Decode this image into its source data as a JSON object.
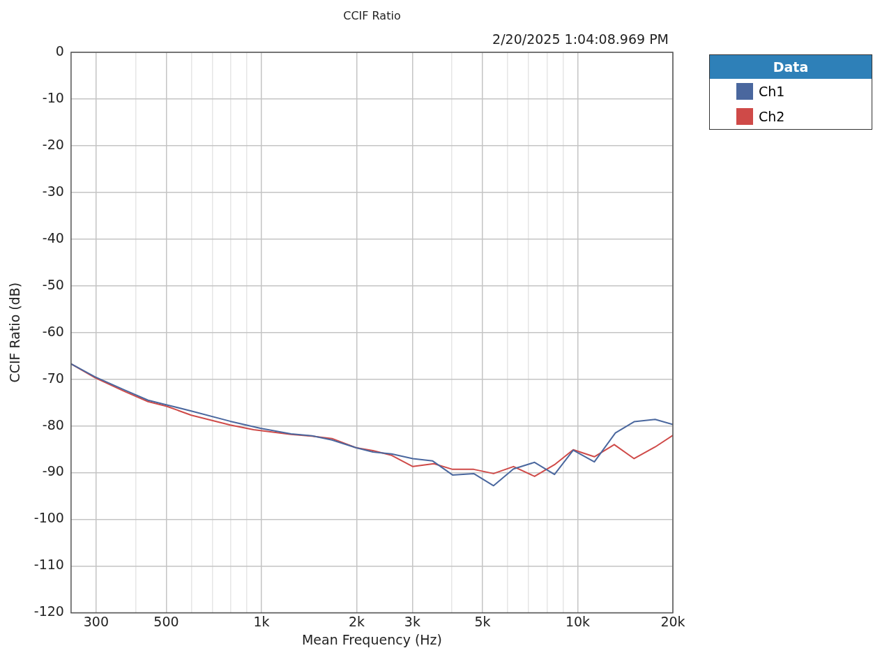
{
  "chart_data": {
    "type": "line",
    "title": "CCIF Ratio",
    "subtitle": "2/20/2025 1:04:08.969 PM",
    "xlabel": "Mean Frequency (Hz)",
    "ylabel": "CCIF Ratio (dB)",
    "legend_title": "Data",
    "legend": "right",
    "grid": true,
    "log": "x",
    "marker": "none",
    "line_style": "solid",
    "xlim": [
      250,
      20000
    ],
    "ylim": [
      -120,
      0
    ],
    "xticks": [
      300,
      {
        "value": 400,
        "label": null
      },
      500,
      {
        "value": 600,
        "label": null
      },
      {
        "value": 700,
        "label": null
      },
      {
        "value": 800,
        "label": null
      },
      {
        "value": 900,
        "label": null
      },
      {
        "value": 1000,
        "label": "1k"
      },
      {
        "value": 2000,
        "label": "2k"
      },
      {
        "value": 3000,
        "label": "3k"
      },
      {
        "value": 4000,
        "label": null
      },
      {
        "value": 5000,
        "label": "5k"
      },
      {
        "value": 6000,
        "label": null
      },
      {
        "value": 7000,
        "label": null
      },
      {
        "value": 8000,
        "label": null
      },
      {
        "value": 9000,
        "label": null
      },
      {
        "value": 10000,
        "label": "10k"
      },
      {
        "value": 20000,
        "label": "20k"
      }
    ],
    "yticks": [
      0,
      -10,
      -20,
      -30,
      -40,
      -50,
      -60,
      -70,
      -80,
      -90,
      -100,
      -110,
      -120
    ],
    "series": [
      {
        "name": "Ch1",
        "color": "#4a679e",
        "x": [
          250,
          298,
          369,
          438,
          502,
          600,
          796,
          993,
          1240,
          1445,
          1671,
          1998,
          2252,
          2581,
          3010,
          3479,
          4021,
          4690,
          5420,
          6266,
          7306,
          8446,
          9680,
          11290,
          13160,
          15080,
          17580,
          20000
        ],
        "values": [
          -66.7,
          -69.5,
          -72.3,
          -74.5,
          -75.5,
          -76.8,
          -79.0,
          -80.5,
          -81.7,
          -82.1,
          -83.0,
          -84.7,
          -85.6,
          -86.0,
          -87.0,
          -87.5,
          -90.5,
          -90.2,
          -92.8,
          -89.2,
          -87.8,
          -90.4,
          -85.2,
          -87.7,
          -81.5,
          -79.1,
          -78.6,
          -79.7
        ]
      },
      {
        "name": "Ch2",
        "color": "#cf4a48",
        "x": [
          250,
          298,
          369,
          438,
          502,
          600,
          796,
          944,
          1240,
          1445,
          1671,
          1998,
          2252,
          2581,
          3010,
          3510,
          4021,
          4690,
          5420,
          6266,
          7306,
          8446,
          9680,
          11290,
          13050,
          15080,
          17580,
          20000
        ],
        "values": [
          -66.7,
          -69.7,
          -72.6,
          -74.8,
          -75.8,
          -77.7,
          -79.8,
          -80.8,
          -81.8,
          -82.2,
          -82.7,
          -84.7,
          -85.3,
          -86.3,
          -88.7,
          -88.1,
          -89.3,
          -89.3,
          -90.2,
          -88.7,
          -90.8,
          -88.3,
          -85.1,
          -86.6,
          -84.0,
          -87.0,
          -84.5,
          -82.0
        ]
      }
    ]
  }
}
